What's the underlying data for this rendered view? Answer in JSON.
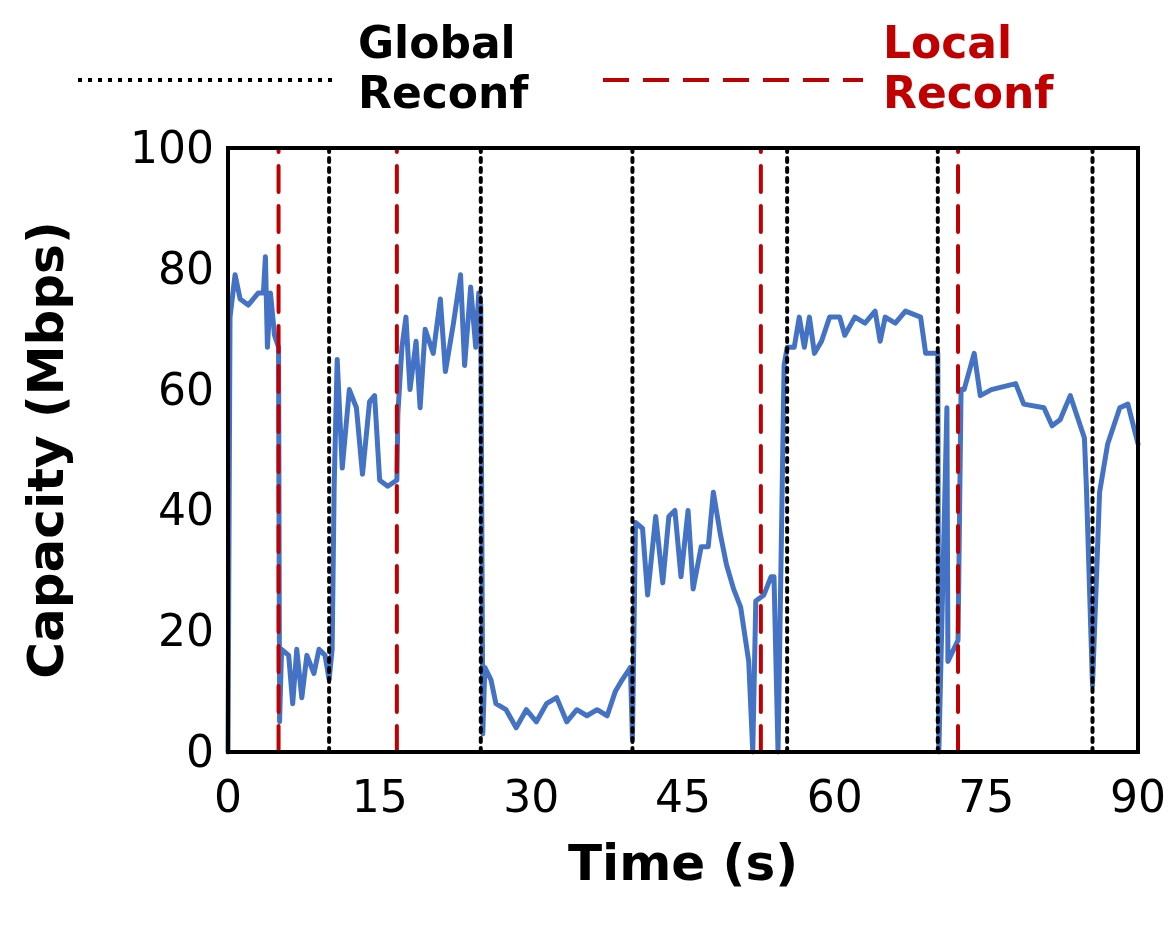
{
  "chart_data": {
    "type": "line",
    "xlabel": "Time (s)",
    "ylabel": "Capacity (Mbps)",
    "xlim": [
      0,
      90
    ],
    "xticks": [
      0,
      15,
      30,
      45,
      60,
      75,
      90
    ],
    "ylim": [
      0,
      100
    ],
    "yticks": [
      0,
      20,
      40,
      60,
      80,
      100
    ],
    "grid": false,
    "legend": "top",
    "marker": "none",
    "line_style": "solid",
    "series": [
      {
        "name": "Global Reconf",
        "color": "#000000",
        "line_style": "dotted",
        "x": [
          10,
          10
        ],
        "values": [
          0,
          100
        ]
      },
      {
        "name": "Local Reconf",
        "color": "#c00000",
        "line_style": "dashed",
        "x": [
          5,
          5
        ],
        "values": [
          0,
          100
        ]
      },
      {
        "color": "#000000",
        "line_style": "dotted",
        "x": [
          25,
          25
        ],
        "values": [
          0,
          100
        ]
      },
      {
        "color": "#000000",
        "line_style": "dotted",
        "x": [
          40,
          40
        ],
        "values": [
          0,
          100
        ]
      },
      {
        "color": "#000000",
        "line_style": "dotted",
        "x": [
          55.3,
          55.3
        ],
        "values": [
          0,
          100
        ]
      },
      {
        "color": "#000000",
        "line_style": "dotted",
        "x": [
          70.2,
          70.2
        ],
        "values": [
          0,
          100
        ]
      },
      {
        "color": "#000000",
        "line_style": "dotted",
        "x": [
          85.5,
          85.5
        ],
        "values": [
          0,
          100
        ]
      },
      {
        "color": "#c00000",
        "line_style": "dashed",
        "x": [
          16.7,
          16.7
        ],
        "values": [
          0,
          100
        ]
      },
      {
        "color": "#c00000",
        "line_style": "dashed",
        "x": [
          52.7,
          52.7
        ],
        "values": [
          0,
          100
        ]
      },
      {
        "color": "#c00000",
        "line_style": "dashed",
        "x": [
          72.2,
          72.2
        ],
        "values": [
          0,
          100
        ]
      },
      {
        "color": "#4472c4",
        "x": [
          0,
          0.2,
          0.7,
          1.2,
          2,
          3,
          3.5,
          3.7,
          3.9,
          4.2,
          4.6,
          5,
          5.1,
          5.3,
          6,
          6.4,
          6.8,
          7.3,
          7.8,
          8.5,
          9,
          9.6,
          10,
          10.3,
          10.5,
          10.8,
          11.3,
          12,
          12.7,
          13.3,
          14,
          14.5,
          15,
          15.8,
          16.7,
          16.8,
          17.2,
          17.6,
          18,
          18.6,
          19,
          19.5,
          20.3,
          21,
          21.5,
          22.3,
          23,
          23.4,
          24,
          24.5,
          24.8,
          25,
          25.2,
          25.4,
          26,
          26.5,
          27.5,
          28.5,
          29.5,
          30.5,
          31.5,
          32.5,
          33.5,
          34.5,
          35.5,
          36.5,
          37.5,
          38.3,
          39,
          39.8,
          40,
          40.3,
          41,
          41.5,
          42.3,
          43,
          43.6,
          44.2,
          44.8,
          45.5,
          46,
          46.8,
          47.5,
          48,
          48.7,
          49.3,
          50,
          50.7,
          51.5,
          51.9,
          52.2,
          53,
          53.7,
          54,
          54.4,
          55,
          55.3,
          56,
          56.5,
          57,
          57.5,
          58,
          58.7,
          59.5,
          60.5,
          61,
          62,
          63,
          64,
          64.5,
          65,
          66,
          67,
          68.5,
          69,
          70,
          70.2,
          70.3,
          71.1,
          71.2,
          72.2,
          72.5,
          72.8,
          73.8,
          74.4,
          75.5,
          77.9,
          78.7,
          80.7,
          81.5,
          82.3,
          83.3,
          84.7,
          84.9,
          85.5,
          86.2,
          87,
          88.2,
          89,
          90
        ],
        "values": [
          0,
          72,
          79,
          75,
          74,
          76,
          76,
          82,
          67,
          76,
          69,
          67,
          5,
          17,
          16,
          8,
          17,
          9,
          16,
          13,
          17,
          16,
          12,
          17,
          44,
          65,
          47,
          60,
          57,
          46,
          58,
          59,
          45,
          44,
          45,
          56,
          67,
          72,
          60,
          68,
          57,
          70,
          66,
          75,
          63,
          71,
          79,
          64,
          77,
          67,
          76,
          74,
          3,
          14,
          12,
          8,
          7,
          4,
          7,
          5,
          8,
          9,
          5,
          7,
          6,
          7,
          6,
          10,
          12,
          14,
          2,
          38,
          37,
          26,
          39,
          28,
          39,
          40,
          29,
          40,
          27,
          34,
          34,
          43,
          36,
          31,
          27,
          24,
          15,
          0,
          25,
          26,
          29,
          29,
          0,
          64,
          67,
          67,
          72,
          67,
          72,
          66,
          68,
          72,
          72,
          69,
          72,
          71,
          73,
          68,
          72,
          71,
          73,
          72,
          66,
          66,
          66,
          0,
          57,
          15,
          18.5,
          60,
          60,
          66,
          59,
          60,
          61,
          57.6,
          57,
          54,
          55,
          59,
          52,
          43.7,
          11,
          43,
          51,
          57,
          57.6,
          51
        ]
      }
    ]
  }
}
